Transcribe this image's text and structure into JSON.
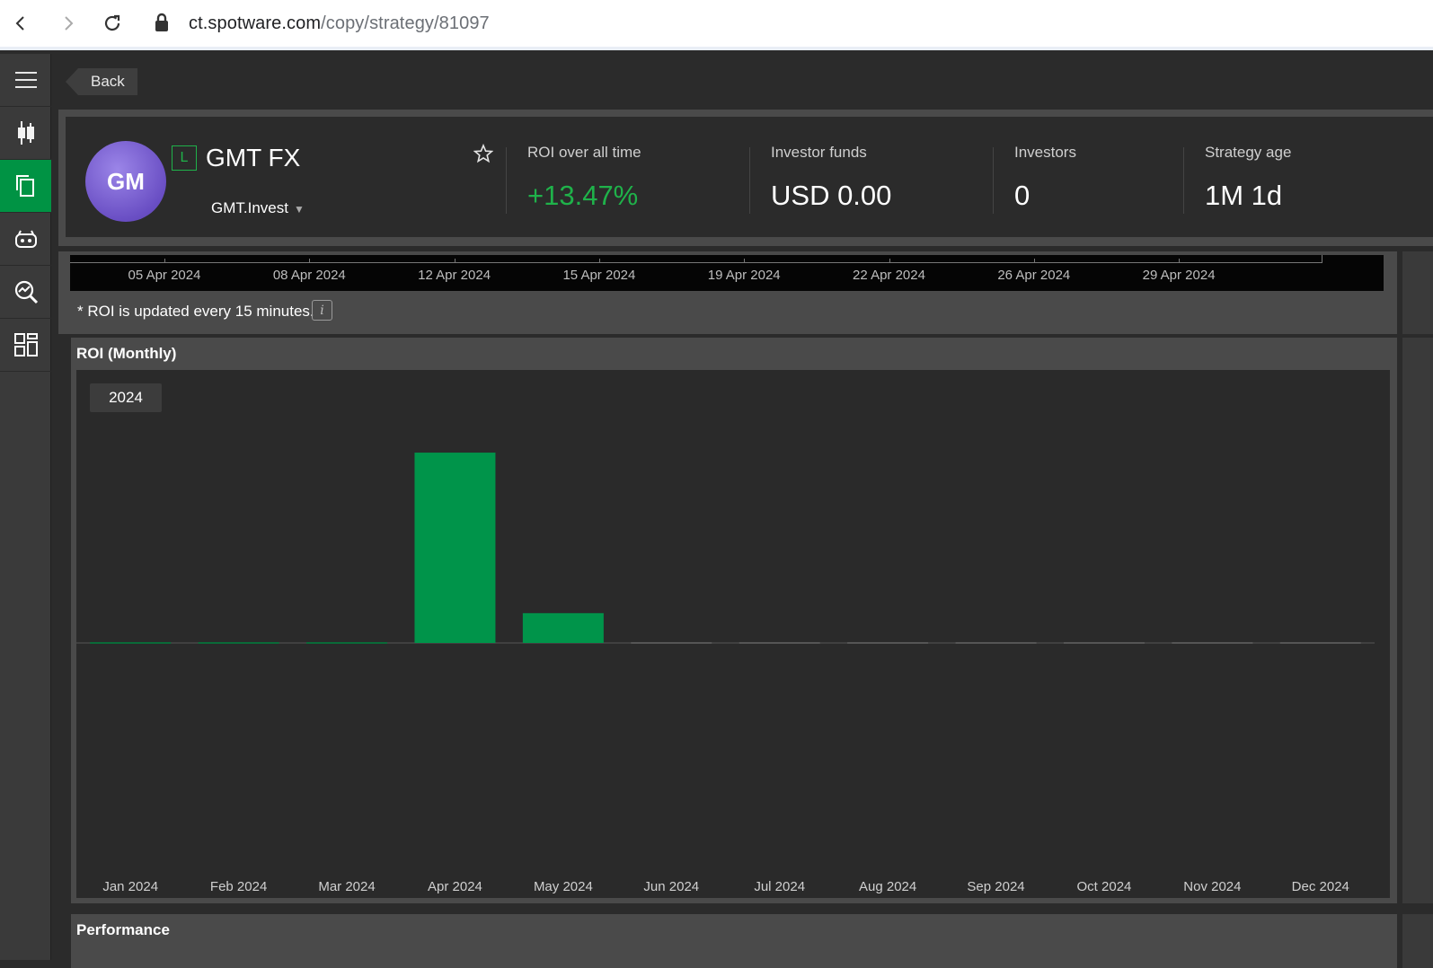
{
  "browser": {
    "url_host": "ct.spotware.com",
    "url_path": "/copy/strategy/81097",
    "icons": [
      "back-arrow-icon",
      "forward-arrow-icon",
      "reload-icon",
      "lock-icon"
    ]
  },
  "sidebar": {
    "items": [
      {
        "name": "menu",
        "icon": "hamburger-icon"
      },
      {
        "name": "trade",
        "icon": "candlestick-icon"
      },
      {
        "name": "copy",
        "icon": "copy-icon",
        "active": true
      },
      {
        "name": "automate",
        "icon": "robot-icon"
      },
      {
        "name": "analyze",
        "icon": "analytics-search-icon"
      },
      {
        "name": "apps",
        "icon": "widgets-icon"
      }
    ]
  },
  "back_label": "Back",
  "strategy": {
    "avatar_initials": "GM",
    "badge": "L",
    "name": "GMT FX",
    "provider": "GMT.Invest",
    "caret": "▼"
  },
  "stats": {
    "roi_label": "ROI over all time",
    "roi_value": "+13.47%",
    "funds_label": "Investor funds",
    "funds_value": "USD 0.00",
    "investors_label": "Investors",
    "investors_value": "0",
    "age_label": "Strategy age",
    "age_value": "1M 1d"
  },
  "equity_axis": {
    "ticks": [
      "05 Apr 2024",
      "08 Apr 2024",
      "12 Apr 2024",
      "15 Apr 2024",
      "19 Apr 2024",
      "22 Apr 2024",
      "26 Apr 2024",
      "29 Apr 2024"
    ]
  },
  "roi_note": "* ROI is updated every 15 minutes.",
  "info_glyph": "i",
  "monthly": {
    "title": "ROI (Monthly)",
    "year_tab": "2024"
  },
  "performance_title": "Performance",
  "colors": {
    "accent": "#009344",
    "positive": "#1fb24a",
    "bar": "#00944a"
  },
  "chart_data": {
    "type": "bar",
    "categories": [
      "Jan 2024",
      "Feb 2024",
      "Mar 2024",
      "Apr 2024",
      "May 2024",
      "Jun 2024",
      "Jul 2024",
      "Aug 2024",
      "Sep 2024",
      "Oct 2024",
      "Nov 2024",
      "Dec 2024"
    ],
    "values": [
      0,
      0,
      0,
      11.5,
      1.8,
      0,
      0,
      0,
      0,
      0,
      0,
      0
    ],
    "title": "ROI (Monthly)",
    "ylim": [
      -14,
      14
    ],
    "grid": false
  }
}
